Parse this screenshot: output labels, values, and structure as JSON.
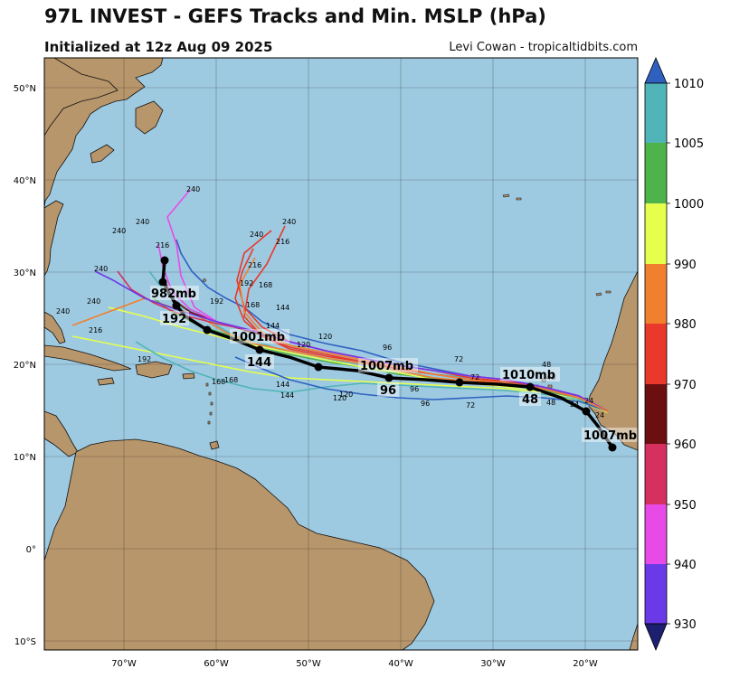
{
  "title": "97L INVEST - GEFS Tracks and Min. MSLP (hPa)",
  "subtitle": "Initialized at 12z Aug 09 2025",
  "credit": "Levi Cowan - tropicaltidbits.com",
  "map": {
    "lat_labels": [
      "50°N",
      "40°N",
      "30°N",
      "20°N",
      "10°N",
      "0°",
      "10°S"
    ],
    "lon_labels": [
      "70°W",
      "60°W",
      "50°W",
      "40°W",
      "30°W",
      "20°W"
    ],
    "colors": {
      "ocean": "#9ecae1",
      "land": "#b8966b"
    }
  },
  "colorbar": {
    "ticks": [
      "1010",
      "1005",
      "1000",
      "990",
      "980",
      "970",
      "960",
      "950",
      "940",
      "930"
    ],
    "colors": [
      "#2f60c0",
      "#50b4b8",
      "#4db34a",
      "#e6ff4d",
      "#f07f2e",
      "#e8392a",
      "#6b0f10",
      "#d63060",
      "#e84ae8",
      "#6b3ae8",
      "#1d2070"
    ]
  },
  "track_annotations": [
    {
      "label": "982mb",
      "lon": -64.5,
      "lat": 28.1
    },
    {
      "label": "192",
      "lon": -64.3,
      "lat": 25.2
    },
    {
      "label": "1001mb",
      "lon": -55.2,
      "lat": 22.9
    },
    {
      "label": "144",
      "lon": -55.0,
      "lat": 19.9
    },
    {
      "label": "1007mb",
      "lon": -41.2,
      "lat": 19.7
    },
    {
      "label": "96",
      "lon": -41.0,
      "lat": 16.9
    },
    {
      "label": "1010mb",
      "lon": -25.8,
      "lat": 18.5
    },
    {
      "label": "48",
      "lon": -26.0,
      "lat": 15.8
    },
    {
      "label": "1007mb",
      "lon": -17.0,
      "lat": 12.3
    }
  ],
  "ensemble_hour_labels": [
    "24",
    "48",
    "72",
    "96",
    "120",
    "144",
    "168",
    "192",
    "216",
    "240"
  ]
}
